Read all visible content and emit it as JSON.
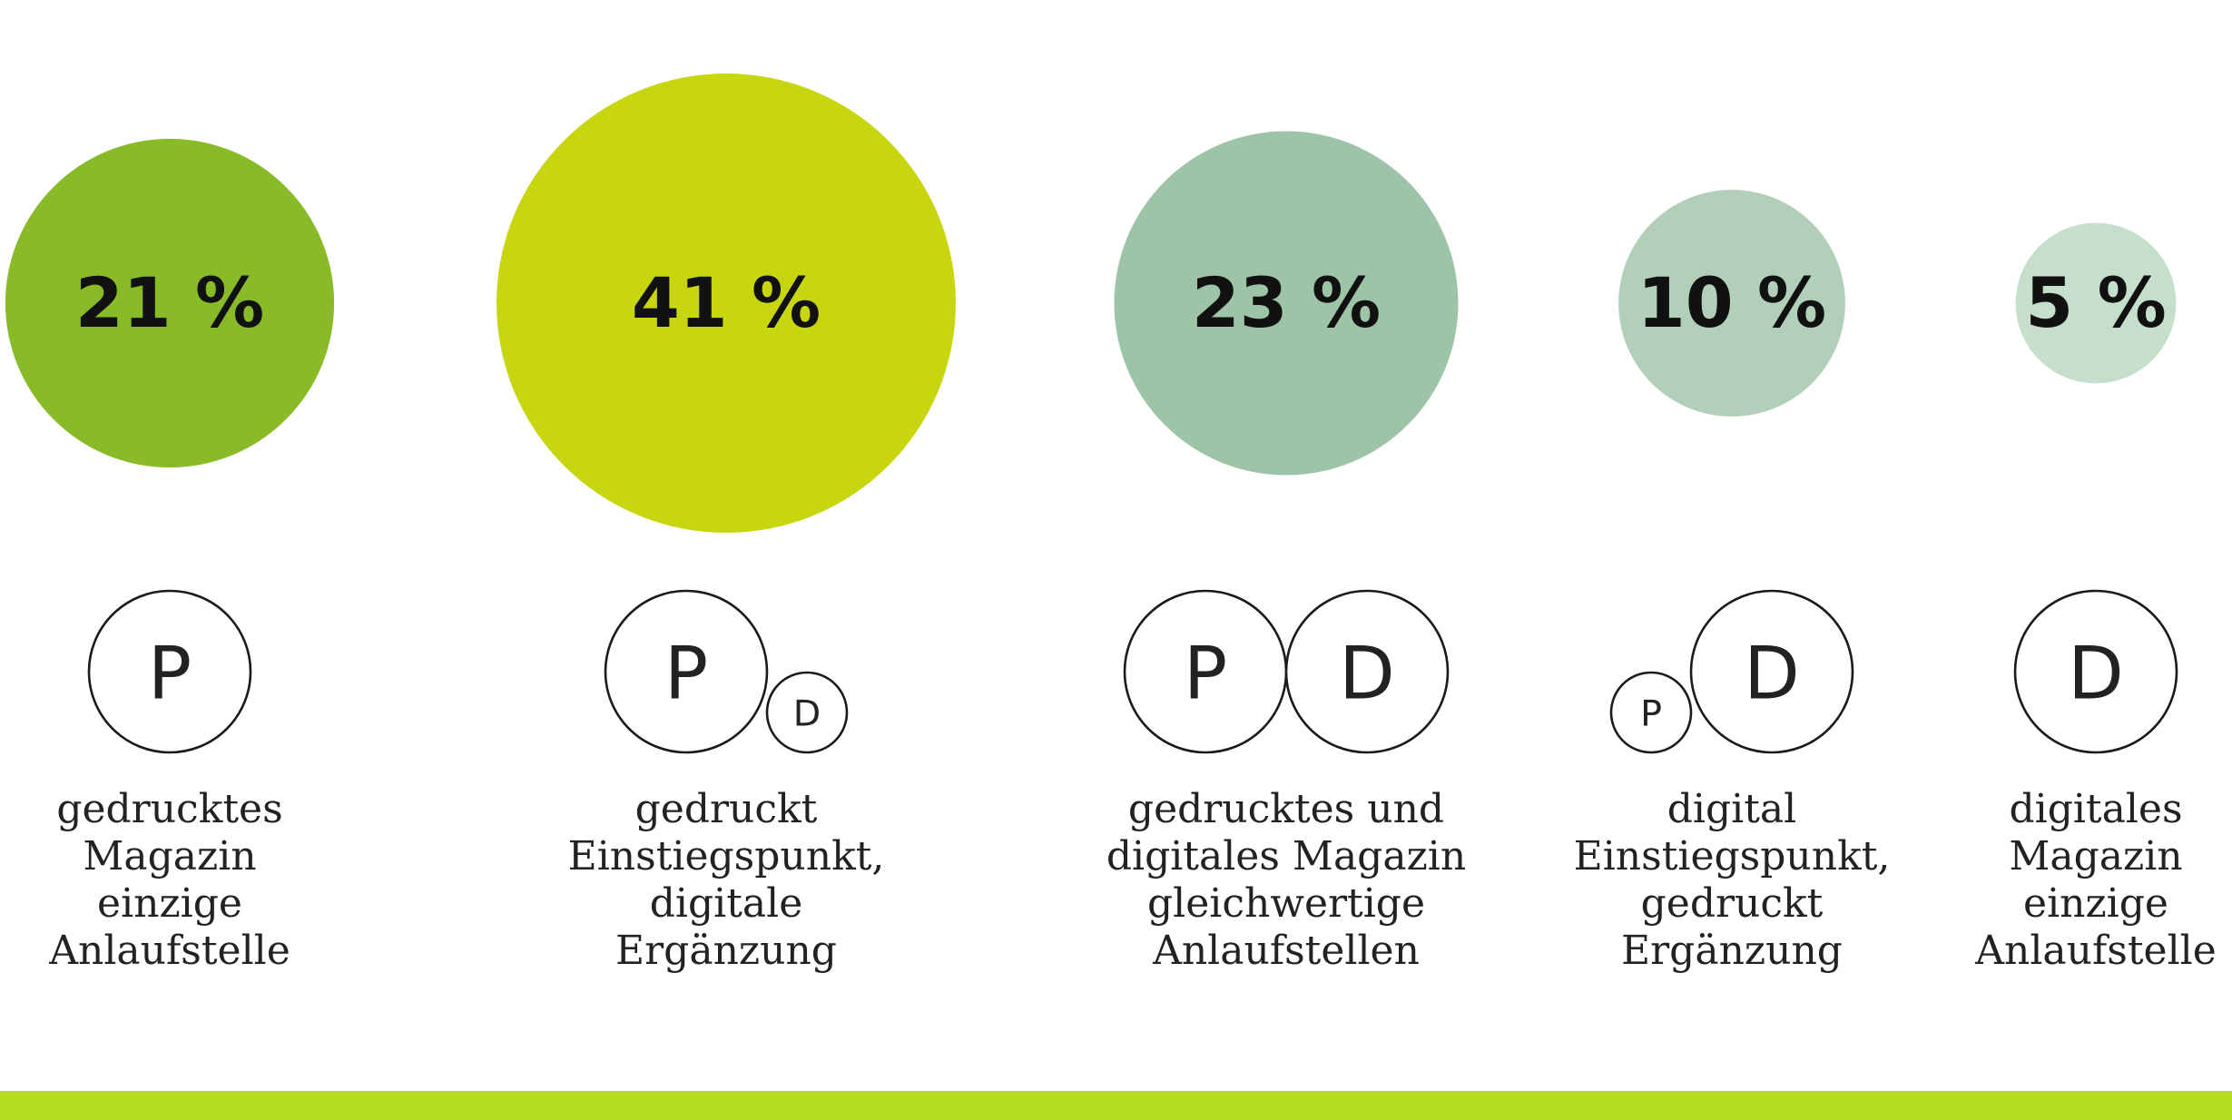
{
  "chart_data": {
    "type": "bubble",
    "unit": "%",
    "categories": [
      "gedrucktes Magazin einzige Anlaufstelle",
      "gedruckt Einstiegspunkt, digitale Ergänzung",
      "gedrucktes und digitales Magazin gleichwertige Anlaufstellen",
      "digital Einstiegspunkt, gedruckt Ergänzung",
      "digitales Magazin einzige Anlaufstelle"
    ],
    "values": [
      21,
      41,
      23,
      10,
      5
    ],
    "value_labels": [
      "21 %",
      "41 %",
      "23 %",
      "10 %",
      "5 %"
    ],
    "label_lines": [
      [
        "gedrucktes",
        "Magazin",
        "einzige",
        "Anlaufstelle"
      ],
      [
        "gedruckt",
        "Einstiegspunkt,",
        "digitale",
        "Ergänzung"
      ],
      [
        "gedrucktes und",
        "digitales Magazin",
        "gleichwertige",
        "Anlaufstellen"
      ],
      [
        "digital",
        "Einstiegspunkt,",
        "gedruckt",
        "Ergänzung"
      ],
      [
        "digitales",
        "Magazin",
        "einzige",
        "Anlaufstelle"
      ]
    ],
    "colors": [
      "#88bb27",
      "#c8d610",
      "#9ec4a7",
      "#b2d0b9",
      "#c6dfcc"
    ],
    "icons": [
      [
        {
          "letter": "P",
          "size": "large"
        }
      ],
      [
        {
          "letter": "P",
          "size": "large"
        },
        {
          "letter": "D",
          "size": "small"
        }
      ],
      [
        {
          "letter": "P",
          "size": "large"
        },
        {
          "letter": "D",
          "size": "large"
        }
      ],
      [
        {
          "letter": "P",
          "size": "small"
        },
        {
          "letter": "D",
          "size": "large"
        }
      ],
      [
        {
          "letter": "D",
          "size": "large"
        }
      ]
    ],
    "footer_bar_color": "#b5dc1e"
  }
}
